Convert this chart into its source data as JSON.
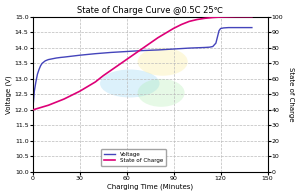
{
  "title": "State of Charge Curve @0.5C 25℃",
  "xlabel": "Charging Time (Minutes)",
  "ylabel_left": "Voltage (V)",
  "ylabel_right": "State of Charge",
  "xlim": [
    0,
    150
  ],
  "ylim_left": [
    10.0,
    15.0
  ],
  "ylim_right": [
    0,
    100
  ],
  "yticks_left": [
    10.0,
    10.5,
    11.0,
    11.5,
    12.0,
    12.5,
    13.0,
    13.5,
    14.0,
    14.5,
    15.0
  ],
  "yticks_right": [
    0,
    10,
    20,
    30,
    40,
    50,
    60,
    70,
    80,
    90,
    100
  ],
  "xticks": [
    0,
    30,
    60,
    90,
    120,
    150
  ],
  "voltage_color": "#4444bb",
  "soc_color": "#dd0077",
  "bg_color": "#ffffff",
  "fig_bg_color": "#ffffff",
  "grid_color": "#bbbbbb",
  "legend_labels": [
    "Voltage",
    "State of Charge"
  ],
  "watermark_blue": [
    0.55,
    0.82,
    0.95,
    0.3
  ],
  "watermark_yellow": [
    0.98,
    0.92,
    0.55,
    0.3
  ],
  "watermark_green": [
    0.65,
    0.92,
    0.65,
    0.28
  ],
  "voltage_data_x": [
    0,
    1,
    2,
    3,
    4,
    5,
    6,
    8,
    10,
    12,
    15,
    18,
    20,
    25,
    30,
    40,
    50,
    60,
    70,
    80,
    90,
    100,
    105,
    110,
    113,
    115,
    117,
    119,
    120,
    121,
    122,
    125,
    130,
    135,
    140
  ],
  "voltage_data_y": [
    12.0,
    12.6,
    12.9,
    13.15,
    13.3,
    13.42,
    13.5,
    13.58,
    13.62,
    13.64,
    13.67,
    13.69,
    13.7,
    13.73,
    13.76,
    13.81,
    13.85,
    13.88,
    13.91,
    13.93,
    13.96,
    13.99,
    14.0,
    14.01,
    14.02,
    14.04,
    14.15,
    14.55,
    14.62,
    14.63,
    14.64,
    14.65,
    14.65,
    14.65,
    14.65
  ],
  "soc_data_x": [
    0,
    5,
    10,
    15,
    20,
    25,
    30,
    35,
    40,
    45,
    50,
    55,
    60,
    65,
    70,
    75,
    80,
    85,
    90,
    95,
    100,
    105,
    110,
    115,
    120,
    125,
    130,
    135,
    140
  ],
  "soc_data_y": [
    40,
    41.5,
    43,
    45,
    47,
    49.5,
    52,
    55,
    58,
    62,
    65.5,
    69,
    72.5,
    76,
    79.5,
    83,
    86.5,
    89.5,
    92.5,
    95,
    97,
    98.2,
    99.0,
    99.5,
    99.8,
    99.9,
    100,
    100,
    100
  ]
}
